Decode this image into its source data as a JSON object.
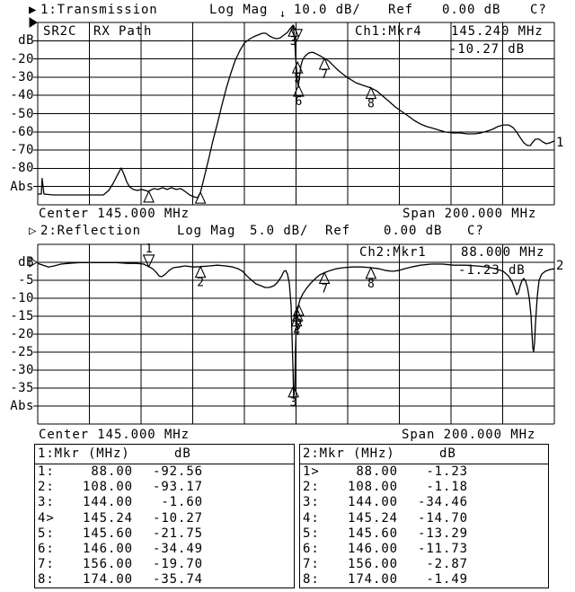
{
  "header1": {
    "pointer": "▶",
    "title": "1:Transmission",
    "scale_label": "Log Mag",
    "scale_arrow": "↓",
    "scale_value": "10.0 dB/",
    "ref_label": "Ref",
    "ref_value": "0.00 dB",
    "cal": "C?"
  },
  "header2": {
    "pointer": "▷",
    "title": "2:Reflection",
    "scale_label": "Log Mag",
    "scale_value": "5.0 dB/",
    "ref_label": "Ref",
    "ref_value": "0.00 dB",
    "cal": "C?"
  },
  "ch1": {
    "annot_left": "SR2C",
    "annot_right": "RX Path",
    "readout_ch": "Ch1:Mkr4",
    "readout_freq": "145.240 MHz",
    "readout_val": "-10.27 dB",
    "center": "Center 145.000 MHz",
    "span": "Span 200.000 MHz",
    "trace_label": "1",
    "yaxis": [
      "dB",
      "-20",
      "-30",
      "-40",
      "-50",
      "-60",
      "-70",
      "-80",
      "Abs"
    ]
  },
  "ch2": {
    "readout_ch": "Ch2:Mkr1",
    "readout_freq": "88.000 MHz",
    "readout_val": "-1.23 dB",
    "center": "Center 145.000 MHz",
    "span": "Span 200.000 MHz",
    "trace_label": "2",
    "yaxis": [
      "dB",
      "-5",
      "-10",
      "-15",
      "-20",
      "-25",
      "-30",
      "-35",
      "Abs"
    ]
  },
  "tables": [
    {
      "title": "1:Mkr (MHz)",
      "unit": "dB",
      "rows": [
        [
          "1:",
          "88.00",
          "-92.56"
        ],
        [
          "2:",
          "108.00",
          "-93.17"
        ],
        [
          "3:",
          "144.00",
          "-1.60"
        ],
        [
          "4>",
          "145.24",
          "-10.27"
        ],
        [
          "5:",
          "145.60",
          "-21.75"
        ],
        [
          "6:",
          "146.00",
          "-34.49"
        ],
        [
          "7:",
          "156.00",
          "-19.70"
        ],
        [
          "8:",
          "174.00",
          "-35.74"
        ]
      ]
    },
    {
      "title": "2:Mkr (MHz)",
      "unit": "dB",
      "rows": [
        [
          "1>",
          "88.00",
          "-1.23"
        ],
        [
          "2:",
          "108.00",
          "-1.18"
        ],
        [
          "3:",
          "144.00",
          "-34.46"
        ],
        [
          "4:",
          "145.24",
          "-14.70"
        ],
        [
          "5:",
          "145.60",
          "-13.29"
        ],
        [
          "6:",
          "146.00",
          "-11.73"
        ],
        [
          "7:",
          "156.00",
          "-2.87"
        ],
        [
          "8:",
          "174.00",
          "-1.49"
        ]
      ]
    }
  ],
  "chart_data": [
    {
      "type": "line",
      "name": "Transmission",
      "title": "1:Transmission Log Mag 10.0 dB/ Ref 0.00 dB",
      "xlabel": "MHz",
      "center_mhz": 145,
      "span_mhz": 200,
      "x_range": [
        45,
        245
      ],
      "ylim": [
        -100,
        0
      ],
      "ydb_per_div": 10,
      "ref_db": 0,
      "ref_pointer": "filled",
      "grid": true,
      "markers": [
        {
          "n": 1,
          "f": 88,
          "db": -92.56,
          "label": false
        },
        {
          "n": 2,
          "f": 108,
          "db": -93.17,
          "label": false
        },
        {
          "n": 3,
          "f": 144,
          "db": -1.6
        },
        {
          "n": 4,
          "f": 145.24,
          "db": -10.27,
          "active": true,
          "label": false
        },
        {
          "n": 5,
          "f": 145.6,
          "db": -21.75
        },
        {
          "n": 6,
          "f": 146,
          "db": -34.49
        },
        {
          "n": 7,
          "f": 156,
          "db": -19.7
        },
        {
          "n": 8,
          "f": 174,
          "db": -35.74
        }
      ],
      "trace": [
        [
          45,
          -94.1
        ],
        [
          46.4,
          -94.1
        ],
        [
          46.7,
          -85.5
        ],
        [
          47.4,
          -94.1
        ],
        [
          51,
          -94.6
        ],
        [
          62,
          -94.6
        ],
        [
          70.4,
          -94.6
        ],
        [
          72.5,
          -92.1
        ],
        [
          74.2,
          -88.2
        ],
        [
          76,
          -83.3
        ],
        [
          77.3,
          -79.8
        ],
        [
          78.4,
          -83.3
        ],
        [
          79.4,
          -87.2
        ],
        [
          80.5,
          -90.1
        ],
        [
          82,
          -91.6
        ],
        [
          83.6,
          -92.1
        ],
        [
          85.3,
          -91.6
        ],
        [
          87.8,
          -92.6
        ],
        [
          89.9,
          -91.1
        ],
        [
          91.6,
          -91.6
        ],
        [
          93.3,
          -90.6
        ],
        [
          95.1,
          -91.6
        ],
        [
          96.8,
          -90.6
        ],
        [
          98.6,
          -91.6
        ],
        [
          100.3,
          -91.1
        ],
        [
          102,
          -92.6
        ],
        [
          103.8,
          -94.6
        ],
        [
          105.5,
          -95.6
        ],
        [
          106.9,
          -96.1
        ],
        [
          108,
          -93.2
        ],
        [
          109.3,
          -85.7
        ],
        [
          111.1,
          -75.4
        ],
        [
          112.8,
          -65
        ],
        [
          114.6,
          -55.2
        ],
        [
          116.3,
          -45.3
        ],
        [
          118,
          -36
        ],
        [
          119.8,
          -27.6
        ],
        [
          121.5,
          -20.7
        ],
        [
          123.3,
          -15.3
        ],
        [
          125,
          -11.3
        ],
        [
          126.7,
          -9.4
        ],
        [
          128.5,
          -7.9
        ],
        [
          130.2,
          -6.9
        ],
        [
          132,
          -5.9
        ],
        [
          133.3,
          -5.9
        ],
        [
          134.7,
          -7.4
        ],
        [
          136.1,
          -8.4
        ],
        [
          137.5,
          -8.9
        ],
        [
          138.9,
          -8.4
        ],
        [
          140.3,
          -6.9
        ],
        [
          141.7,
          -5.4
        ],
        [
          142.7,
          -3.4
        ],
        [
          143.8,
          -1.6
        ],
        [
          144.1,
          -3.9
        ],
        [
          144.5,
          -10.3
        ],
        [
          144.8,
          -18.2
        ],
        [
          145.2,
          -26.1
        ],
        [
          145.5,
          -32
        ],
        [
          145.9,
          -35.5
        ],
        [
          146.2,
          -31
        ],
        [
          146.9,
          -23.6
        ],
        [
          147.6,
          -20.2
        ],
        [
          148.7,
          -18.2
        ],
        [
          150,
          -16.7
        ],
        [
          151.4,
          -16.3
        ],
        [
          152.8,
          -17.2
        ],
        [
          154.2,
          -18.2
        ],
        [
          156,
          -19.7
        ],
        [
          157.7,
          -21.2
        ],
        [
          159.4,
          -23.6
        ],
        [
          161.2,
          -26.1
        ],
        [
          162.9,
          -28.1
        ],
        [
          164.7,
          -30
        ],
        [
          166.4,
          -31.5
        ],
        [
          168.1,
          -33
        ],
        [
          169.9,
          -34
        ],
        [
          172,
          -35
        ],
        [
          174,
          -35.9
        ],
        [
          176.1,
          -37.4
        ],
        [
          178.6,
          -40.4
        ],
        [
          181,
          -43.3
        ],
        [
          183.4,
          -46.3
        ],
        [
          185.9,
          -48.8
        ],
        [
          188.3,
          -51.2
        ],
        [
          190.7,
          -53.7
        ],
        [
          193.2,
          -55.7
        ],
        [
          195.6,
          -57.1
        ],
        [
          198.1,
          -58.1
        ],
        [
          200.5,
          -59.1
        ],
        [
          202.9,
          -60.1
        ],
        [
          205.7,
          -60.6
        ],
        [
          208.5,
          -60.6
        ],
        [
          211.3,
          -61.1
        ],
        [
          214.1,
          -61.1
        ],
        [
          216.5,
          -60.6
        ],
        [
          218.9,
          -59.6
        ],
        [
          221,
          -58.6
        ],
        [
          223.1,
          -57.1
        ],
        [
          225.2,
          -56.2
        ],
        [
          227.3,
          -56.2
        ],
        [
          229,
          -57.6
        ],
        [
          230.4,
          -60.1
        ],
        [
          231.8,
          -63.1
        ],
        [
          233.2,
          -66
        ],
        [
          234.6,
          -67.5
        ],
        [
          235.7,
          -67.5
        ],
        [
          236.7,
          -65.5
        ],
        [
          237.7,
          -64
        ],
        [
          239.1,
          -64
        ],
        [
          240.5,
          -65.5
        ],
        [
          241.9,
          -66.5
        ],
        [
          243.3,
          -66
        ],
        [
          245,
          -65
        ]
      ]
    },
    {
      "type": "line",
      "name": "Reflection",
      "title": "2:Reflection Log Mag 5.0 dB/ Ref 0.00 dB",
      "xlabel": "MHz",
      "center_mhz": 145,
      "span_mhz": 200,
      "x_range": [
        45,
        245
      ],
      "ylim": [
        -45,
        5
      ],
      "ydb_per_div": 5,
      "ref_db": 0,
      "ref_pointer": "open",
      "grid": true,
      "markers": [
        {
          "n": 1,
          "f": 88,
          "db": -1.23,
          "active": true
        },
        {
          "n": 2,
          "f": 108,
          "db": -1.18
        },
        {
          "n": 3,
          "f": 144,
          "db": -34.46
        },
        {
          "n": 4,
          "f": 145.24,
          "db": -14.7
        },
        {
          "n": 5,
          "f": 145.6,
          "db": -13.29
        },
        {
          "n": 6,
          "f": 146,
          "db": -11.73
        },
        {
          "n": 7,
          "f": 156,
          "db": -2.87
        },
        {
          "n": 8,
          "f": 174,
          "db": -1.49
        }
      ],
      "trace": [
        [
          45,
          -0.3
        ],
        [
          47.1,
          -0.8
        ],
        [
          49.2,
          -1.3
        ],
        [
          51.3,
          -1
        ],
        [
          54,
          -0.5
        ],
        [
          56.8,
          -0.3
        ],
        [
          61,
          -0.1
        ],
        [
          70,
          -0.1
        ],
        [
          75.6,
          -0.1
        ],
        [
          79.8,
          -0.3
        ],
        [
          83.3,
          -0.3
        ],
        [
          86,
          -0.5
        ],
        [
          88,
          -1.2
        ],
        [
          89.5,
          -1.8
        ],
        [
          90.9,
          -2.8
        ],
        [
          92,
          -3.8
        ],
        [
          93,
          -4
        ],
        [
          94.4,
          -3.3
        ],
        [
          95.8,
          -2.3
        ],
        [
          97.5,
          -1.5
        ],
        [
          99.6,
          -1.3
        ],
        [
          102,
          -1
        ],
        [
          105.2,
          -1.3
        ],
        [
          108,
          -1.2
        ],
        [
          111.4,
          -1
        ],
        [
          114.6,
          -0.8
        ],
        [
          117.7,
          -1
        ],
        [
          120.5,
          -1.3
        ],
        [
          122.6,
          -1.8
        ],
        [
          124.3,
          -2.5
        ],
        [
          126,
          -3.8
        ],
        [
          127.8,
          -5
        ],
        [
          129.5,
          -6
        ],
        [
          131.3,
          -6.5
        ],
        [
          133,
          -7
        ],
        [
          134.7,
          -7
        ],
        [
          136.5,
          -6.5
        ],
        [
          137.9,
          -5.5
        ],
        [
          139.3,
          -4
        ],
        [
          140.3,
          -2.5
        ],
        [
          141,
          -2.3
        ],
        [
          141.7,
          -3.3
        ],
        [
          142.4,
          -5.8
        ],
        [
          143.1,
          -12
        ],
        [
          143.4,
          -19.5
        ],
        [
          143.8,
          -29.5
        ],
        [
          144.1,
          -38
        ],
        [
          144.5,
          -34.5
        ],
        [
          144.8,
          -24.5
        ],
        [
          145.2,
          -15
        ],
        [
          145.6,
          -13.3
        ],
        [
          146,
          -11.8
        ],
        [
          146.6,
          -10.3
        ],
        [
          147.6,
          -8.8
        ],
        [
          149,
          -7.3
        ],
        [
          150.7,
          -5.8
        ],
        [
          152.5,
          -4.5
        ],
        [
          154.2,
          -3.5
        ],
        [
          156,
          -2.9
        ],
        [
          158.1,
          -2.3
        ],
        [
          160.5,
          -1.8
        ],
        [
          163.3,
          -1.5
        ],
        [
          166.8,
          -1.3
        ],
        [
          170.6,
          -1.3
        ],
        [
          174,
          -1.5
        ],
        [
          177.2,
          -1.8
        ],
        [
          179.9,
          -2.3
        ],
        [
          182.4,
          -2.5
        ],
        [
          184.5,
          -2.3
        ],
        [
          186.9,
          -1.8
        ],
        [
          189.7,
          -1.3
        ],
        [
          193.2,
          -0.8
        ],
        [
          197.4,
          -0.5
        ],
        [
          201.6,
          -0.5
        ],
        [
          206.1,
          -0.8
        ],
        [
          210.6,
          -0.8
        ],
        [
          214.8,
          -1
        ],
        [
          219,
          -1.3
        ],
        [
          222.4,
          -1.8
        ],
        [
          225.2,
          -2.5
        ],
        [
          227.3,
          -3.8
        ],
        [
          228.7,
          -5.5
        ],
        [
          229.7,
          -7.5
        ],
        [
          230.4,
          -9
        ],
        [
          231.1,
          -8.5
        ],
        [
          231.8,
          -6.5
        ],
        [
          232.5,
          -5
        ],
        [
          233.2,
          -4.5
        ],
        [
          233.9,
          -5.3
        ],
        [
          234.6,
          -7
        ],
        [
          235.3,
          -10
        ],
        [
          236,
          -15
        ],
        [
          236.3,
          -19.5
        ],
        [
          236.7,
          -24
        ],
        [
          237,
          -24.8
        ],
        [
          237.4,
          -22
        ],
        [
          237.7,
          -17
        ],
        [
          238.4,
          -9.5
        ],
        [
          239.1,
          -5
        ],
        [
          240.1,
          -3.3
        ],
        [
          241.5,
          -2.5
        ],
        [
          243.3,
          -2
        ],
        [
          245,
          -1.8
        ]
      ]
    }
  ]
}
